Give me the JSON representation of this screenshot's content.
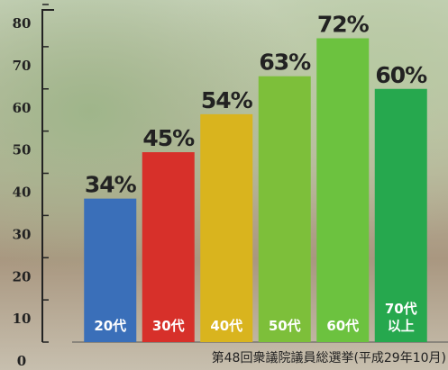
{
  "chart_data": {
    "type": "bar",
    "categories": [
      "20代",
      "30代",
      "40代",
      "50代",
      "60代",
      "70代以上"
    ],
    "values": [
      34,
      45,
      54,
      63,
      72,
      60
    ],
    "value_labels": [
      "34%",
      "45%",
      "54%",
      "63%",
      "72%",
      "60%"
    ],
    "colors": [
      "#3a6fb9",
      "#d7302a",
      "#d9b41e",
      "#7dbf3a",
      "#6cc23f",
      "#26a84e"
    ],
    "ylim": [
      0,
      80
    ],
    "yticks": [
      0,
      10,
      20,
      30,
      40,
      50,
      60,
      70,
      80
    ],
    "note": "第48回衆議院議員総選挙(平成29年10月)"
  }
}
